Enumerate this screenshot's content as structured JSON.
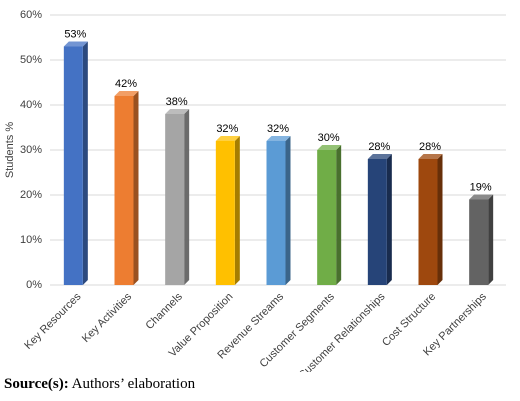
{
  "chart_data": {
    "type": "bar3d",
    "y_label": "Students %",
    "categories": [
      "Key Resources",
      "Key Activities",
      "Channels",
      "Value Proposition",
      "Revenue Streams",
      "Customer Segments",
      "Customer Relationships",
      "Cost Structure",
      "Key Partnerships"
    ],
    "values": [
      53,
      42,
      38,
      32,
      32,
      30,
      28,
      28,
      19
    ],
    "value_labels": [
      "53%",
      "42%",
      "38%",
      "32%",
      "32%",
      "30%",
      "28%",
      "28%",
      "19%"
    ],
    "colors": [
      "#4472c4",
      "#ed7d31",
      "#a5a5a5",
      "#ffc000",
      "#5b9bd5",
      "#70ad47",
      "#264478",
      "#9e480e",
      "#636363"
    ],
    "ylim": [
      0,
      60
    ],
    "yticks": [
      {
        "value": 0,
        "label": "0%"
      },
      {
        "value": 10,
        "label": "10%"
      },
      {
        "value": 20,
        "label": "20%"
      },
      {
        "value": 30,
        "label": "30%"
      },
      {
        "value": 40,
        "label": "40%"
      },
      {
        "value": 50,
        "label": "50%"
      },
      {
        "value": 60,
        "label": "60%"
      }
    ],
    "grid": true
  },
  "source": {
    "label": "Source(s):",
    "text": "Authors’ elaboration"
  }
}
